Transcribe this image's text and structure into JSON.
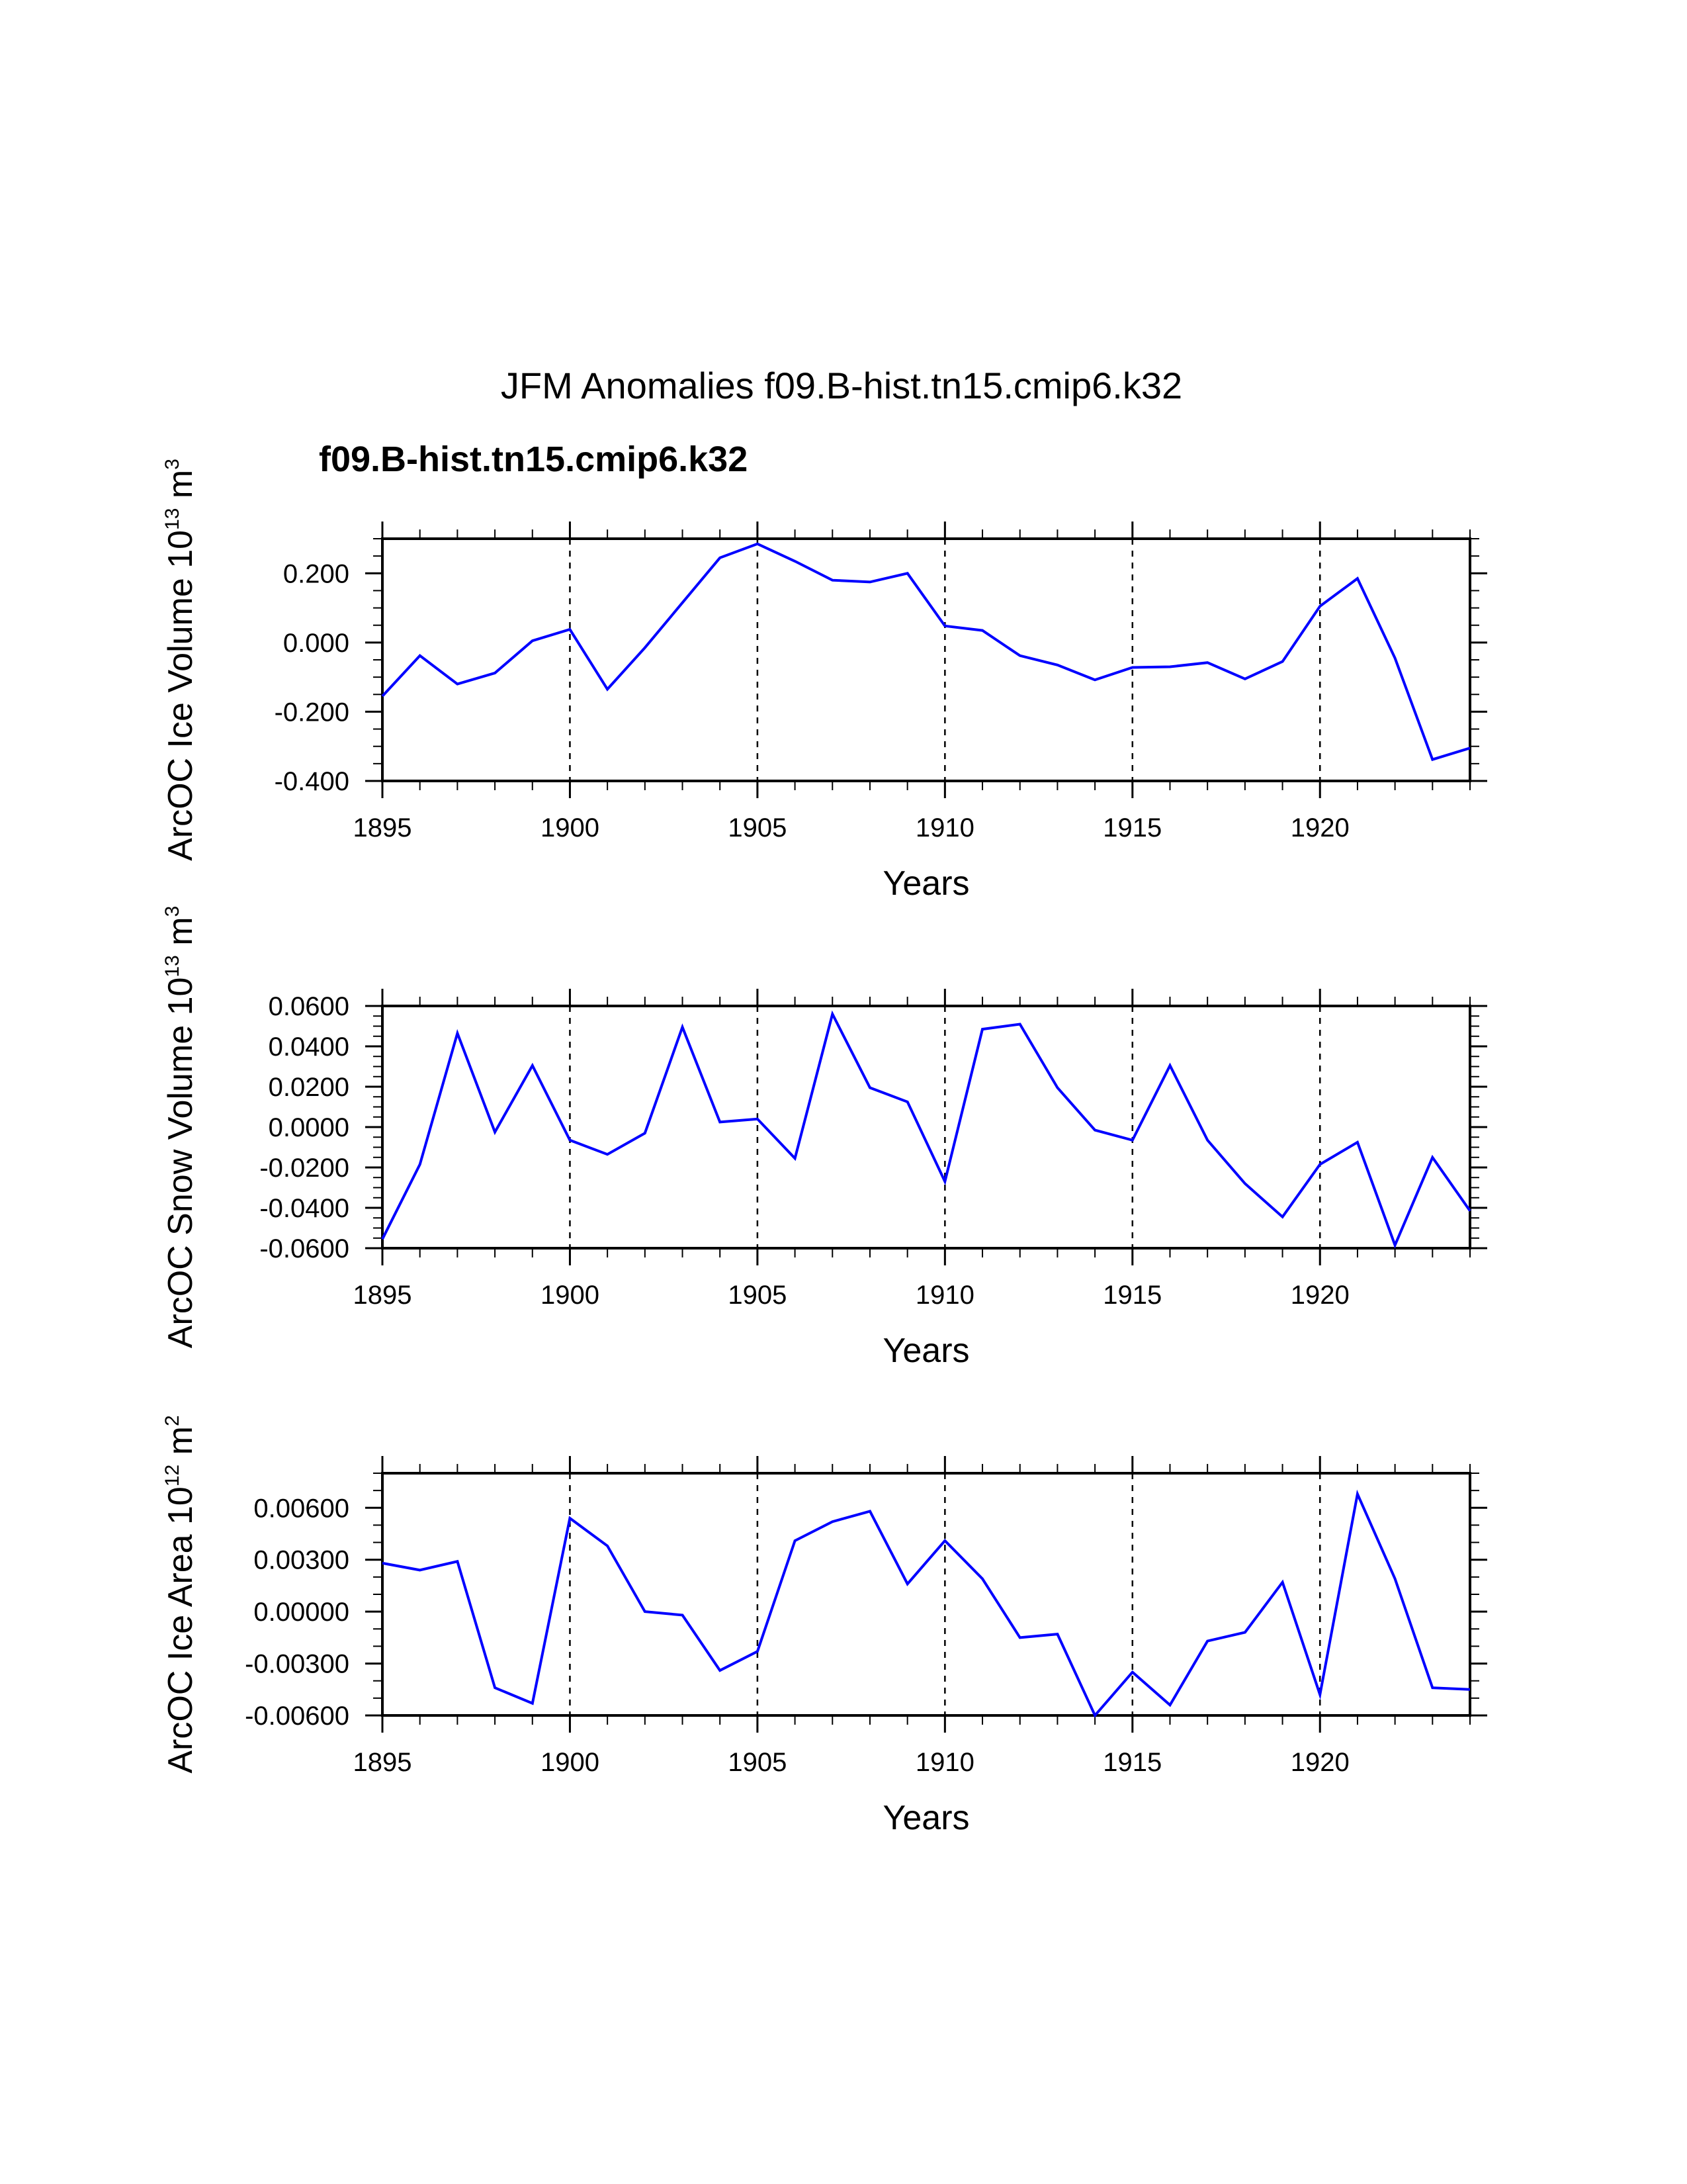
{
  "title": "JFM Anomalies f09.B-hist.tn15.cmip6.k32",
  "legend": {
    "label": "f09.B-hist.tn15.cmip6.k32",
    "color": "#0000ff"
  },
  "colors": {
    "series": "#0000ff",
    "axis": "#000000"
  },
  "chart_data": [
    {
      "type": "line",
      "ylabel": {
        "main": "ArcOC Ice Volume 10",
        "exp": "13",
        "unit": " m",
        "unit_exp": "3"
      },
      "xlabel": "Years",
      "xlim": [
        1895,
        1924
      ],
      "ylim": [
        -0.4,
        0.3
      ],
      "x_ticks": [
        "1895",
        "1900",
        "1905",
        "1910",
        "1915",
        "1920"
      ],
      "x_tick_values": [
        1895,
        1900,
        1905,
        1910,
        1915,
        1920
      ],
      "y_ticks": [
        "-0.400",
        "-0.200",
        "0.000",
        "0.200"
      ],
      "y_tick_values": [
        -0.4,
        -0.2,
        0.0,
        0.2
      ],
      "y_minor_step": 0.05,
      "x": [
        1895,
        1896,
        1897,
        1898,
        1899,
        1900,
        1901,
        1902,
        1903,
        1904,
        1905,
        1906,
        1907,
        1908,
        1909,
        1910,
        1911,
        1912,
        1913,
        1914,
        1915,
        1916,
        1917,
        1918,
        1919,
        1920,
        1921,
        1922,
        1923,
        1924
      ],
      "series": [
        {
          "name": "f09.B-hist.tn15.cmip6.k32",
          "values": [
            -0.155,
            -0.038,
            -0.12,
            -0.088,
            0.005,
            0.038,
            -0.135,
            -0.015,
            0.115,
            0.245,
            0.285,
            0.235,
            0.18,
            0.175,
            0.2,
            0.048,
            0.035,
            -0.038,
            -0.065,
            -0.108,
            -0.072,
            -0.07,
            -0.058,
            -0.105,
            -0.055,
            0.105,
            0.185,
            -0.045,
            -0.338,
            -0.305
          ]
        }
      ]
    },
    {
      "type": "line",
      "ylabel": {
        "main": "ArcOC Snow Volume 10",
        "exp": "13",
        "unit": " m",
        "unit_exp": "3"
      },
      "xlabel": "Years",
      "xlim": [
        1895,
        1924
      ],
      "ylim": [
        -0.06,
        0.06
      ],
      "x_ticks": [
        "1895",
        "1900",
        "1905",
        "1910",
        "1915",
        "1920"
      ],
      "x_tick_values": [
        1895,
        1900,
        1905,
        1910,
        1915,
        1920
      ],
      "y_ticks": [
        "-0.0600",
        "-0.0400",
        "-0.0200",
        "0.0000",
        "0.0200",
        "0.0400",
        "0.0600"
      ],
      "y_tick_values": [
        -0.06,
        -0.04,
        -0.02,
        0.0,
        0.02,
        0.04,
        0.06
      ],
      "y_minor_step": 0.005,
      "x": [
        1895,
        1896,
        1897,
        1898,
        1899,
        1900,
        1901,
        1902,
        1903,
        1904,
        1905,
        1906,
        1907,
        1908,
        1909,
        1910,
        1911,
        1912,
        1913,
        1914,
        1915,
        1916,
        1917,
        1918,
        1919,
        1920,
        1921,
        1922,
        1923,
        1924
      ],
      "series": [
        {
          "name": "f09.B-hist.tn15.cmip6.k32",
          "values": [
            -0.0555,
            -0.0185,
            0.0465,
            -0.0025,
            0.0305,
            -0.0065,
            -0.0135,
            -0.003,
            0.0495,
            0.0025,
            0.004,
            -0.0155,
            0.056,
            0.0195,
            0.0125,
            -0.027,
            0.0485,
            0.051,
            0.0195,
            -0.0015,
            -0.0065,
            0.0305,
            -0.0065,
            -0.028,
            -0.0445,
            -0.0185,
            -0.0075,
            -0.0585,
            -0.015,
            -0.0415
          ]
        }
      ]
    },
    {
      "type": "line",
      "ylabel": {
        "main": "ArcOC Ice Area 10",
        "exp": "12",
        "unit": " m",
        "unit_exp": "2"
      },
      "xlabel": "Years",
      "xlim": [
        1895,
        1924
      ],
      "ylim": [
        -0.006,
        0.008
      ],
      "x_ticks": [
        "1895",
        "1900",
        "1905",
        "1910",
        "1915",
        "1920"
      ],
      "x_tick_values": [
        1895,
        1900,
        1905,
        1910,
        1915,
        1920
      ],
      "y_ticks": [
        "-0.00600",
        "-0.00300",
        "0.00000",
        "0.00300",
        "0.00600"
      ],
      "y_tick_values": [
        -0.006,
        -0.003,
        0.0,
        0.003,
        0.006
      ],
      "y_minor_step": 0.001,
      "x": [
        1895,
        1896,
        1897,
        1898,
        1899,
        1900,
        1901,
        1902,
        1903,
        1904,
        1905,
        1906,
        1907,
        1908,
        1909,
        1910,
        1911,
        1912,
        1913,
        1914,
        1915,
        1916,
        1917,
        1918,
        1919,
        1920,
        1921,
        1922,
        1923,
        1924
      ],
      "series": [
        {
          "name": "f09.B-hist.tn15.cmip6.k32",
          "values": [
            0.0028,
            0.0024,
            0.0029,
            -0.0044,
            -0.0053,
            0.0054,
            0.0038,
            0.0,
            -0.0002,
            -0.0034,
            -0.0023,
            0.0041,
            0.0052,
            0.0058,
            0.0016,
            0.0041,
            0.0019,
            -0.0015,
            -0.0013,
            -0.006,
            -0.0035,
            -0.0054,
            -0.0017,
            -0.0012,
            0.0017,
            -0.0048,
            0.0068,
            0.0019,
            -0.0044,
            -0.0045
          ]
        }
      ]
    }
  ]
}
